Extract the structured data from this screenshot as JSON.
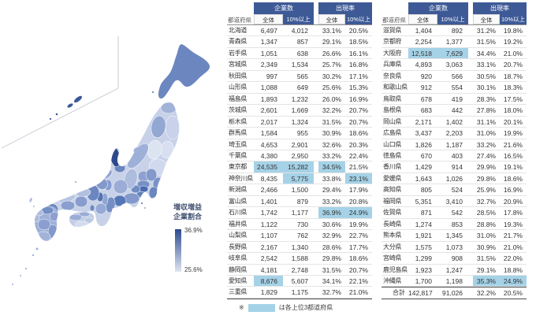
{
  "legend": {
    "title_line1": "増収増益",
    "title_line2": "企業割合",
    "max_label": "36.9%",
    "min_label": "25.6%",
    "color_max": "#2c4a8c",
    "color_min": "#dfe5f2"
  },
  "table_header": {
    "prefecture": "都道府県",
    "group_companies": "企業数",
    "group_rate": "出現率",
    "sub_total": "全体",
    "sub_10plus": "10%以上"
  },
  "footnote": {
    "marker": "※",
    "text": "は各上位3都道府県"
  },
  "colors": {
    "header_bg": "#3e5a96",
    "highlight": "#a5d2e7"
  },
  "chart_data": {
    "type": "table",
    "title": "増収増益企業割合",
    "columns": [
      "都道府県",
      "企業数 全体",
      "企業数 10%以上",
      "出現率 全体",
      "出現率 10%以上"
    ],
    "highlight_rule": "は各上位3都道府県",
    "map_metric": {
      "label": "増収増益企業割合",
      "min": 25.6,
      "max": 36.9,
      "unit": "%"
    },
    "left_rows": [
      [
        "北海道",
        "6,497",
        "4,012",
        "33.1%",
        "20.5%",
        "0000"
      ],
      [
        "青森県",
        "1,347",
        "857",
        "29.1%",
        "18.5%",
        "0000"
      ],
      [
        "岩手県",
        "1,051",
        "638",
        "26.6%",
        "16.1%",
        "0000"
      ],
      [
        "宮城県",
        "2,349",
        "1,534",
        "25.7%",
        "16.8%",
        "0000"
      ],
      [
        "秋田県",
        "997",
        "565",
        "30.2%",
        "17.1%",
        "0000"
      ],
      [
        "山形県",
        "1,088",
        "649",
        "25.6%",
        "15.3%",
        "0000"
      ],
      [
        "福島県",
        "1,893",
        "1,232",
        "26.0%",
        "16.9%",
        "0000"
      ],
      [
        "茨城県",
        "2,601",
        "1,669",
        "32.2%",
        "20.7%",
        "0000"
      ],
      [
        "栃木県",
        "2,017",
        "1,324",
        "31.5%",
        "20.7%",
        "0000"
      ],
      [
        "群馬県",
        "1,584",
        "955",
        "30.9%",
        "18.6%",
        "0000"
      ],
      [
        "埼玉県",
        "4,653",
        "2,901",
        "32.6%",
        "20.3%",
        "0000"
      ],
      [
        "千葉県",
        "4,380",
        "2,950",
        "33.2%",
        "22.4%",
        "0000"
      ],
      [
        "東京都",
        "24,535",
        "15,282",
        "34.5%",
        "21.5%",
        "1110"
      ],
      [
        "神奈川県",
        "8,435",
        "5,775",
        "33.8%",
        "23.1%",
        "0101"
      ],
      [
        "新潟県",
        "2,466",
        "1,500",
        "29.4%",
        "17.9%",
        "0000"
      ],
      [
        "富山県",
        "1,401",
        "879",
        "33.2%",
        "20.8%",
        "0000"
      ],
      [
        "石川県",
        "1,742",
        "1,177",
        "36.9%",
        "24.9%",
        "0011"
      ],
      [
        "福井県",
        "1,122",
        "730",
        "30.6%",
        "19.9%",
        "0000"
      ],
      [
        "山梨県",
        "1,107",
        "762",
        "32.9%",
        "22.7%",
        "0000"
      ],
      [
        "長野県",
        "2,167",
        "1,340",
        "28.6%",
        "17.7%",
        "0000"
      ],
      [
        "岐阜県",
        "2,542",
        "1,588",
        "29.8%",
        "18.6%",
        "0000"
      ],
      [
        "静岡県",
        "4,181",
        "2,748",
        "31.5%",
        "20.7%",
        "0000"
      ],
      [
        "愛知県",
        "8,676",
        "5,607",
        "34.1%",
        "22.1%",
        "1000"
      ],
      [
        "三重県",
        "1,829",
        "1,175",
        "32.7%",
        "21.0%",
        "0000"
      ]
    ],
    "right_rows": [
      [
        "滋賀県",
        "1,404",
        "892",
        "31.2%",
        "19.8%",
        "0000"
      ],
      [
        "京都府",
        "2,254",
        "1,377",
        "31.5%",
        "19.2%",
        "0000"
      ],
      [
        "大阪府",
        "12,518",
        "7,629",
        "34.4%",
        "21.0%",
        "1100"
      ],
      [
        "兵庫県",
        "4,893",
        "3,063",
        "33.1%",
        "20.7%",
        "0000"
      ],
      [
        "奈良県",
        "920",
        "566",
        "30.5%",
        "18.7%",
        "0000"
      ],
      [
        "和歌山県",
        "912",
        "554",
        "30.1%",
        "18.3%",
        "0000"
      ],
      [
        "鳥取県",
        "678",
        "419",
        "28.3%",
        "17.5%",
        "0000"
      ],
      [
        "島根県",
        "683",
        "442",
        "27.8%",
        "18.0%",
        "0000"
      ],
      [
        "岡山県",
        "2,171",
        "1,402",
        "31.1%",
        "20.1%",
        "0000"
      ],
      [
        "広島県",
        "3,437",
        "2,203",
        "31.0%",
        "19.9%",
        "0000"
      ],
      [
        "山口県",
        "1,826",
        "1,187",
        "33.2%",
        "21.6%",
        "0000"
      ],
      [
        "徳島県",
        "670",
        "403",
        "27.4%",
        "16.5%",
        "0000"
      ],
      [
        "香川県",
        "1,429",
        "914",
        "29.9%",
        "19.1%",
        "0000"
      ],
      [
        "愛媛県",
        "1,643",
        "1,026",
        "29.8%",
        "18.6%",
        "0000"
      ],
      [
        "高知県",
        "805",
        "524",
        "25.9%",
        "16.9%",
        "0000"
      ],
      [
        "福岡県",
        "5,351",
        "3,410",
        "32.7%",
        "20.9%",
        "0000"
      ],
      [
        "佐賀県",
        "871",
        "542",
        "28.5%",
        "17.8%",
        "0000"
      ],
      [
        "長崎県",
        "1,274",
        "853",
        "28.8%",
        "19.3%",
        "0000"
      ],
      [
        "熊本県",
        "1,921",
        "1,345",
        "31.0%",
        "21.7%",
        "0000"
      ],
      [
        "大分県",
        "1,575",
        "1,073",
        "30.9%",
        "21.0%",
        "0000"
      ],
      [
        "宮崎県",
        "1,299",
        "908",
        "31.5%",
        "22.0%",
        "0000"
      ],
      [
        "鹿児島県",
        "1,923",
        "1,247",
        "29.1%",
        "18.8%",
        "0000"
      ],
      [
        "沖縄県",
        "1,700",
        "1,198",
        "35.3%",
        "24.9%",
        "0011"
      ]
    ],
    "total_row": [
      "合計",
      "142,817",
      "91,026",
      "32.2%",
      "20.5%",
      "0000"
    ]
  },
  "map": {
    "region_fills": {
      "hokkaido": "#6c87c0",
      "aomori": "#a2b3da",
      "iwate": "#c9d2ea",
      "miyagi": "#d8dff0",
      "akita": "#93a7d3",
      "yamagata": "#dce3f1",
      "fukushima": "#d0d9ed",
      "ibaraki": "#7b92c7",
      "tochigi": "#8399cb",
      "gunma": "#8da0d0",
      "saitama": "#7690c5",
      "chiba": "#6b86bf",
      "tokyo": "#4a6bb0",
      "kanagawa": "#6180ba",
      "niigata": "#9fb0d8",
      "toyama": "#6b86bf",
      "ishikawa": "#2c4a8c",
      "fukui": "#90a4d1",
      "yamanashi": "#718dc2",
      "nagano": "#aebdde",
      "gifu": "#9badd6",
      "shizuoka": "#8399cb",
      "aichi": "#5677b6",
      "mie": "#748fc4",
      "shiga": "#879cce",
      "kyoto": "#8399cb",
      "osaka": "#5274b2",
      "hyogo": "#6c87c0",
      "nara": "#91a5d2",
      "wakayama": "#95a9d4",
      "tottori": "#b1c0df",
      "shimane": "#b8c5e2",
      "okayama": "#889dce",
      "hiroshima": "#8a9ecf",
      "yamaguchi": "#6b86bf",
      "tokushima": "#bcc9e4",
      "kagawa": "#9aacd6",
      "ehime": "#9badd6",
      "kochi": "#d3dbee",
      "fukuoka": "#748fc4",
      "saga": "#afbede",
      "nagasaki": "#abbbdc",
      "kumamoto": "#8a9ecf",
      "oita": "#8da0d0",
      "miyazaki": "#8399cb",
      "kagoshima": "#a2b3da",
      "okinawa": "#3c589c",
      "honshu_base": "#c7d1e8",
      "shikoku_base": "#c2cde6",
      "kyushu_base": "#9fb0d8"
    }
  }
}
